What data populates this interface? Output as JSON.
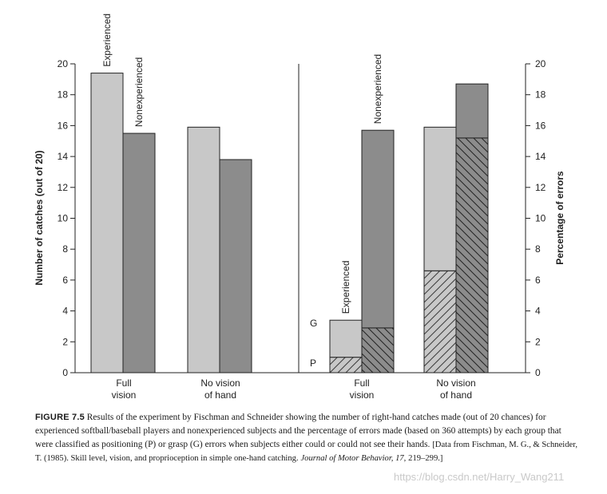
{
  "chart_data": [
    {
      "type": "bar",
      "title": "",
      "ylabel": "Number of catches (out of 20)",
      "ylim": [
        0,
        20
      ],
      "yticks": [
        "0",
        "2",
        "4",
        "6",
        "8",
        "10",
        "12",
        "14",
        "16",
        "18",
        "20"
      ],
      "categories": [
        [
          "Full",
          "vision"
        ],
        [
          "No vision",
          "of hand"
        ]
      ],
      "series": [
        {
          "name": "Experienced",
          "values": [
            19.4,
            15.9
          ],
          "color": "#c8c8c8"
        },
        {
          "name": "Nonexperienced",
          "values": [
            15.5,
            13.8
          ],
          "color": "#8c8c8c"
        }
      ],
      "bar_labels": [
        "Experienced",
        "Nonexperienced"
      ]
    },
    {
      "type": "bar",
      "stacked": true,
      "ylabel": "Percentage of errors",
      "ylim": [
        0,
        20
      ],
      "yticks": [
        "0",
        "2",
        "4",
        "6",
        "8",
        "10",
        "12",
        "14",
        "16",
        "18",
        "20"
      ],
      "categories": [
        [
          "Full",
          "vision"
        ],
        [
          "No vision",
          "of hand"
        ]
      ],
      "groups": [
        {
          "name": "Experienced",
          "P": [
            1.0,
            6.6
          ],
          "G": [
            2.4,
            9.3
          ],
          "color": "#c8c8c8"
        },
        {
          "name": "Nonexperienced",
          "P": [
            2.9,
            15.2
          ],
          "G": [
            12.8,
            3.5
          ],
          "color": "#8c8c8c"
        }
      ],
      "stack_labels": [
        "P",
        "G"
      ],
      "bar_labels": [
        "Experienced",
        "Nonexperienced"
      ]
    }
  ],
  "caption": {
    "label": "FIGURE 7.5",
    "text": "Results of the experiment by Fischman and Schneider showing the number of right-hand catches made (out of 20 chances) for experienced softball/baseball players and nonexperienced subjects and the percentage of errors made (based on 360 attempts) by each group that were classified as positioning (P) or grasp (G) errors when subjects either could or could not see their hands.",
    "source_prefix": "[Data from Fischman, M. G.,  & Schneider, T. (1985). Skill level, vision, and proprioception in simple one-hand catching.",
    "source_journal": "Journal of Motor Behavior, 17,",
    "source_pages": "219–299.]"
  },
  "watermark": "https://blog.csdn.net/Harry_Wang211"
}
